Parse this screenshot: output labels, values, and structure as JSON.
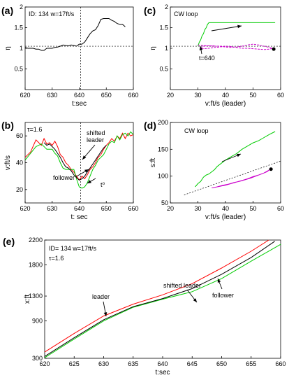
{
  "chart_data": [
    {
      "panel_label": "(a)",
      "type": "line",
      "annotation": "ID: 134  w=17ft/s",
      "xlabel": "t:sec",
      "ylabel": "η",
      "xlim": [
        620,
        660
      ],
      "ylim": [
        0,
        2
      ],
      "xticks": [
        620,
        630,
        640,
        650,
        660
      ],
      "yticks": [
        0.5,
        1,
        1.5,
        2
      ],
      "yticklabels": [
        "0.5",
        "1",
        "1.5",
        "2"
      ],
      "hline": 1.05,
      "vline": 640.5,
      "series": [
        {
          "color": "#000000",
          "x": [
            620,
            621,
            622,
            623,
            624,
            625,
            626,
            627,
            628,
            629,
            630,
            631,
            632,
            633,
            634,
            635,
            636,
            637,
            638,
            639,
            640,
            641,
            642,
            643,
            644,
            645,
            646,
            647,
            648,
            649,
            650,
            651,
            652,
            653,
            654,
            655,
            656,
            657
          ],
          "y": [
            1.02,
            1.0,
            1.0,
            1.0,
            0.98,
            0.98,
            0.95,
            0.95,
            1.0,
            1.0,
            1.0,
            1.02,
            1.03,
            1.05,
            1.08,
            1.07,
            1.06,
            1.08,
            1.07,
            1.05,
            1.1,
            1.1,
            1.15,
            1.25,
            1.35,
            1.42,
            1.45,
            1.55,
            1.7,
            1.72,
            1.72,
            1.72,
            1.68,
            1.65,
            1.6,
            1.58,
            1.58,
            1.52
          ]
        }
      ]
    },
    {
      "panel_label": "(b)",
      "type": "line",
      "annotation": "τ=1.6",
      "annotations": [
        "shifted",
        "leader",
        "follower",
        "t⁰"
      ],
      "xlabel": "t: sec",
      "ylabel": "v:ft/s",
      "xlim": [
        620,
        660
      ],
      "ylim": [
        10,
        70
      ],
      "xticks": [
        620,
        630,
        640,
        650,
        660
      ],
      "yticks": [
        20,
        40,
        60
      ],
      "vline": 640.5,
      "series": [
        {
          "color": "#ff0000",
          "x": [
            620,
            622,
            624,
            626,
            627,
            628,
            629,
            630,
            631,
            632,
            633,
            634,
            635,
            636,
            637,
            638,
            639,
            640,
            641,
            642,
            643,
            644,
            645,
            646,
            647,
            648,
            649,
            650,
            651,
            652,
            653,
            654,
            655,
            656,
            657,
            658,
            659,
            660
          ],
          "y": [
            44,
            48,
            57,
            53,
            58,
            54,
            55,
            53,
            56,
            52,
            46,
            44,
            40,
            38,
            35,
            33,
            30,
            27,
            30,
            28,
            31,
            35,
            37,
            40,
            44,
            46,
            50,
            53,
            55,
            58,
            56,
            60,
            58,
            62,
            58,
            62,
            60,
            61
          ]
        },
        {
          "color": "#00cc00",
          "x": [
            620,
            622,
            624,
            626,
            628,
            630,
            631,
            632,
            633,
            634,
            635,
            636,
            638,
            639,
            640,
            641,
            642,
            643,
            644,
            645,
            646,
            647,
            648,
            649,
            650,
            651,
            652,
            653,
            654,
            655,
            656,
            657,
            658,
            659,
            660
          ],
          "y": [
            42,
            47,
            52,
            54,
            50,
            50,
            47,
            45,
            40,
            36,
            35,
            35,
            35,
            28,
            22,
            21,
            22,
            25,
            30,
            35,
            38,
            42,
            44,
            46,
            50,
            54,
            56,
            55,
            60,
            57,
            61,
            62,
            60,
            63,
            61
          ]
        },
        {
          "color": "#000000",
          "x": [
            627,
            628,
            629,
            630,
            631,
            632,
            633,
            634,
            635,
            636,
            637,
            638,
            639,
            640,
            641,
            642,
            643,
            644,
            645,
            646,
            647,
            648,
            649,
            650
          ],
          "y": [
            55,
            53,
            54,
            52,
            50,
            47,
            44,
            40,
            37,
            36,
            34,
            31,
            29,
            27,
            28,
            30,
            33,
            36,
            39,
            42,
            45,
            48,
            51,
            53
          ]
        }
      ]
    },
    {
      "panel_label": "(c)",
      "type": "line",
      "annotation": "CW loop",
      "annotations": [
        "t=640"
      ],
      "xlabel": "v:ft/s  (leader)",
      "ylabel": "η",
      "xlim": [
        20,
        60
      ],
      "ylim": [
        0,
        2
      ],
      "xticks": [
        20,
        30,
        40,
        50,
        60
      ],
      "yticks": [
        0.5,
        1,
        1.5,
        2
      ],
      "yticklabels": [
        "0.5",
        "1",
        "1.5",
        "2"
      ],
      "hline": 1.05,
      "series": [
        {
          "color": "#00cc00",
          "x": [
            30,
            30.5,
            31,
            31.5,
            32,
            32.5,
            33,
            33.5,
            34,
            36,
            38,
            40,
            44,
            48,
            52,
            56,
            58
          ],
          "y": [
            1.05,
            1.15,
            1.2,
            1.3,
            1.35,
            1.45,
            1.5,
            1.58,
            1.62,
            1.62,
            1.62,
            1.62,
            1.62,
            1.62,
            1.62,
            1.62,
            1.62
          ]
        },
        {
          "color": "#cc00cc",
          "x": [
            30,
            32,
            34,
            36,
            38,
            40,
            42,
            44,
            46,
            48,
            50,
            52,
            54,
            56,
            57,
            56,
            54,
            52,
            50,
            48,
            46,
            44,
            42,
            40,
            38,
            36,
            34,
            32,
            31,
            31.5,
            32,
            34,
            36
          ],
          "y": [
            1.08,
            1.07,
            1.06,
            1.05,
            1.05,
            1.03,
            1.02,
            1.03,
            1.05,
            1.08,
            1.1,
            1.08,
            1.05,
            1.02,
            1.0,
            0.98,
            0.97,
            0.98,
            0.99,
            1.0,
            1.0,
            1.02,
            1.04,
            1.05,
            1.03,
            1.02,
            1.0,
            0.99,
            1.0,
            1.03,
            1.05,
            1.06,
            1.06
          ]
        },
        {
          "color": "#000000",
          "x": [
            57.5
          ],
          "y": [
            0.98
          ]
        }
      ]
    },
    {
      "panel_label": "(d)",
      "type": "line",
      "annotation": "CW loop",
      "xlabel": "v:ft/s (leader)",
      "ylabel": "s:ft",
      "xlim": [
        20,
        60
      ],
      "ylim": [
        50,
        200
      ],
      "xticks": [
        20,
        30,
        40,
        50,
        60
      ],
      "yticks": [
        50,
        100,
        150,
        200
      ],
      "series": [
        {
          "color": "#00cc00",
          "x": [
            29,
            30,
            31,
            32,
            33,
            34,
            35,
            36,
            37,
            38,
            39,
            40,
            42,
            44,
            46,
            48,
            50,
            52,
            54,
            56,
            58
          ],
          "y": [
            80,
            86,
            90,
            98,
            102,
            104,
            108,
            112,
            118,
            122,
            126,
            130,
            136,
            142,
            150,
            156,
            162,
            166,
            172,
            178,
            183
          ]
        },
        {
          "color": "#cc00cc",
          "x": [
            35,
            37,
            39,
            41,
            43,
            45,
            47,
            49,
            51,
            53,
            55,
            56,
            54,
            52,
            50,
            48,
            46,
            44,
            42,
            40,
            38,
            36,
            35
          ],
          "y": [
            78,
            80,
            83,
            85,
            88,
            90,
            93,
            96,
            100,
            104,
            108,
            112,
            106,
            102,
            99,
            95,
            92,
            89,
            86,
            83,
            81,
            79,
            78
          ]
        },
        {
          "color": "#000000",
          "x": [
            56.5
          ],
          "y": [
            113
          ]
        }
      ],
      "dashed_line": {
        "x": [
          25,
          60
        ],
        "y": [
          65,
          128
        ]
      }
    },
    {
      "panel_label": "(e)",
      "type": "line",
      "annotation": "ID= 134  w=17ft/s",
      "annotation2": "τ=1.6",
      "annotations": [
        "leader",
        "shifted leader",
        "follower"
      ],
      "xlabel": "t:sec",
      "ylabel": "x:ft",
      "xlim": [
        620,
        660
      ],
      "ylim": [
        300,
        2200
      ],
      "xticks": [
        620,
        625,
        630,
        635,
        640,
        645,
        650,
        655,
        660
      ],
      "yticks": [
        300,
        900,
        1300,
        1800,
        2200
      ],
      "series": [
        {
          "color": "#ff0000",
          "x": [
            620,
            625,
            630,
            635,
            640,
            645,
            650,
            655,
            658
          ],
          "y": [
            400,
            700,
            980,
            1170,
            1320,
            1500,
            1750,
            2020,
            2200
          ]
        },
        {
          "color": "#00cc00",
          "x": [
            620,
            625,
            630,
            635,
            640,
            645,
            650,
            655,
            660
          ],
          "y": [
            310,
            610,
            900,
            1120,
            1250,
            1370,
            1580,
            1860,
            2130
          ]
        },
        {
          "color": "#000000",
          "x": [
            620,
            625,
            630,
            635,
            640,
            645,
            650,
            655,
            659
          ],
          "y": [
            330,
            630,
            920,
            1130,
            1260,
            1420,
            1650,
            1920,
            2180
          ]
        }
      ]
    }
  ]
}
